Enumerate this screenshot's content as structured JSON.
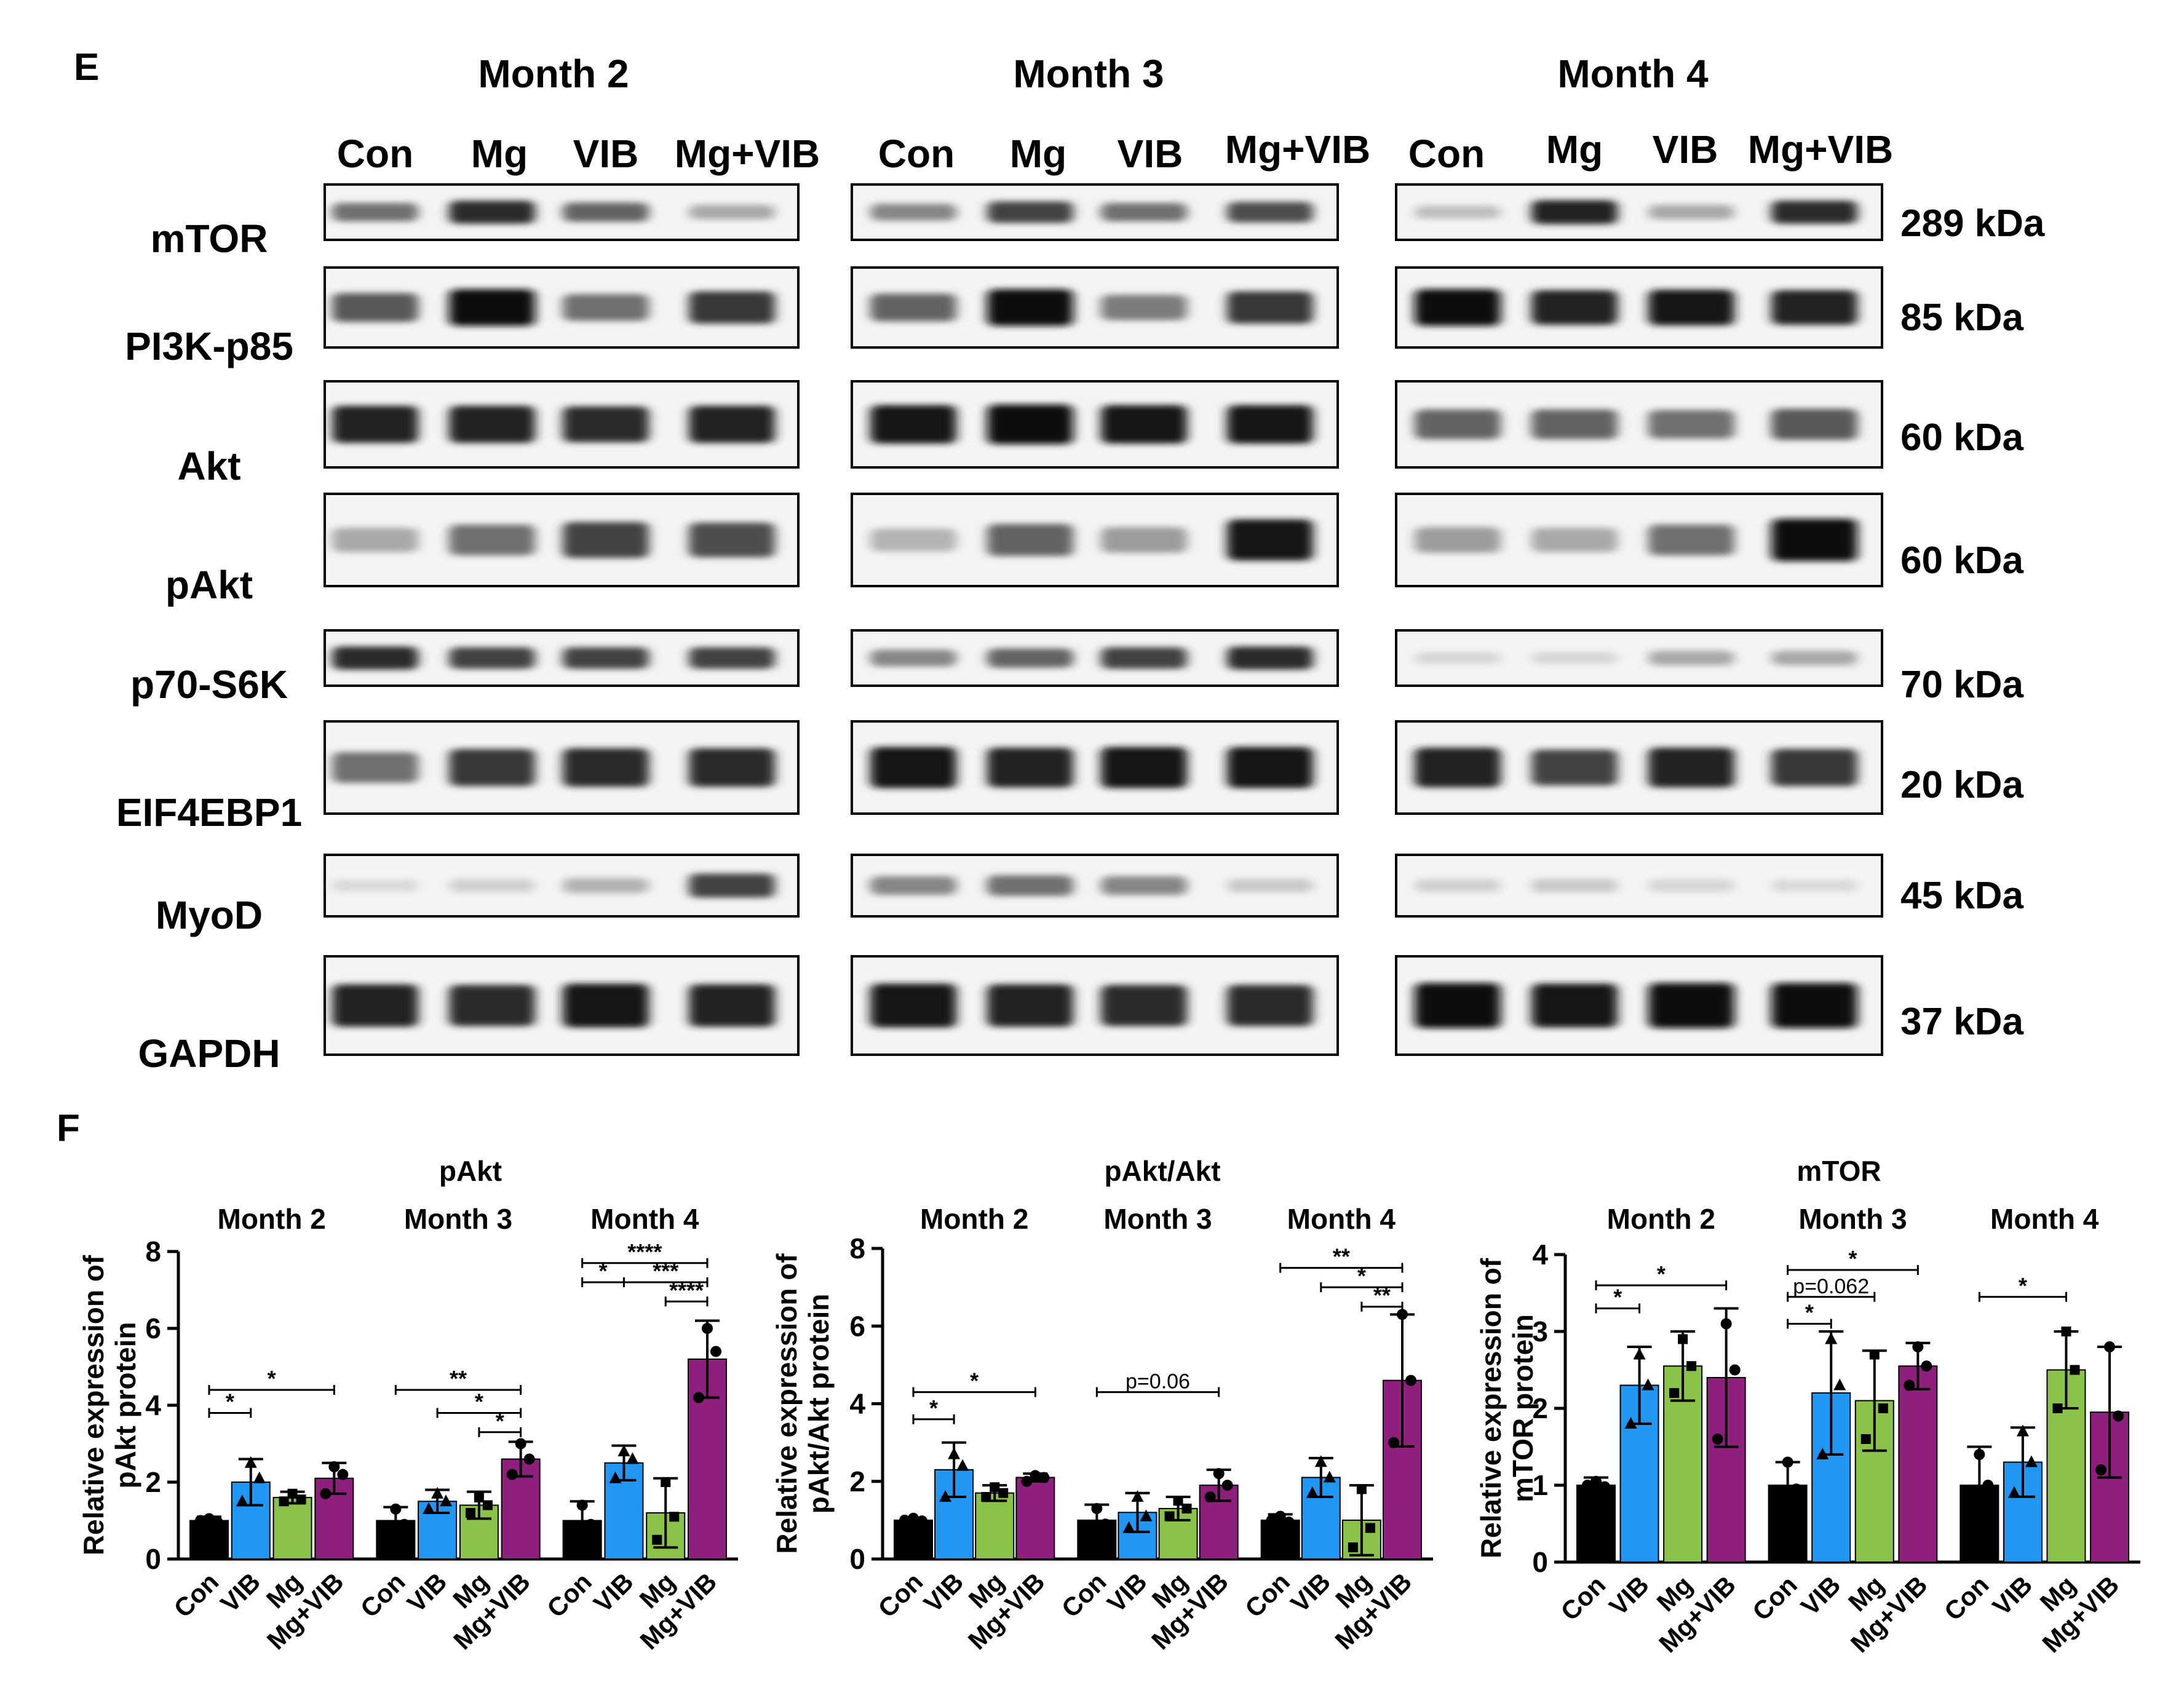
{
  "panel_e": {
    "letter": "E",
    "months": [
      "Month 2",
      "Month 3",
      "Month 4"
    ],
    "lanes": [
      "Con",
      "Mg",
      "VIB",
      "Mg+VIB"
    ],
    "rows": [
      {
        "protein": "mTOR",
        "size": "289 kDa",
        "intensities": [
          [
            0.55,
            0.85,
            0.6,
            0.3
          ],
          [
            0.45,
            0.75,
            0.55,
            0.7
          ],
          [
            0.2,
            0.9,
            0.3,
            0.85
          ]
        ]
      },
      {
        "protein": "PI3K-p85",
        "size": "85 kDa",
        "intensities": [
          [
            0.65,
            1.0,
            0.55,
            0.8
          ],
          [
            0.6,
            1.0,
            0.5,
            0.8
          ],
          [
            1.0,
            0.9,
            0.95,
            0.9
          ]
        ]
      },
      {
        "protein": "Akt",
        "size": "60 kDa",
        "intensities": [
          [
            0.9,
            0.9,
            0.85,
            0.9
          ],
          [
            0.95,
            1.0,
            0.95,
            0.95
          ],
          [
            0.6,
            0.6,
            0.55,
            0.65
          ]
        ]
      },
      {
        "protein": "pAkt",
        "size": "60 kDa",
        "intensities": [
          [
            0.3,
            0.55,
            0.75,
            0.7
          ],
          [
            0.25,
            0.6,
            0.35,
            0.95
          ],
          [
            0.35,
            0.3,
            0.55,
            1.0
          ]
        ]
      },
      {
        "protein": "p70-S6K",
        "size": "70 kDa",
        "intensities": [
          [
            0.85,
            0.75,
            0.75,
            0.75
          ],
          [
            0.45,
            0.6,
            0.75,
            0.85
          ],
          [
            0.1,
            0.1,
            0.3,
            0.3
          ]
        ]
      },
      {
        "protein": "EIF4EBP1",
        "size": "20 kDa",
        "intensities": [
          [
            0.55,
            0.8,
            0.85,
            0.85
          ],
          [
            0.95,
            0.9,
            0.95,
            0.95
          ],
          [
            0.9,
            0.75,
            0.9,
            0.8
          ]
        ]
      },
      {
        "protein": "MyoD",
        "size": "45 kDa",
        "intensities": [
          [
            0.08,
            0.12,
            0.25,
            0.75
          ],
          [
            0.45,
            0.55,
            0.45,
            0.15
          ],
          [
            0.12,
            0.15,
            0.1,
            0.08
          ]
        ]
      },
      {
        "protein": "GAPDH",
        "size": "37 kDa",
        "intensities": [
          [
            0.9,
            0.85,
            0.95,
            0.9
          ],
          [
            0.95,
            0.9,
            0.85,
            0.85
          ],
          [
            1.0,
            0.95,
            1.0,
            1.0
          ]
        ]
      }
    ]
  },
  "panel_f": {
    "letter": "F",
    "colors": {
      "Con": "#000000",
      "VIB": "#2196F3",
      "Mg": "#8BC34A",
      "Mg+VIB": "#8E1F7D"
    }
  },
  "chart_data": [
    {
      "type": "bar",
      "title": "pAkt",
      "ylabel": "Relative expression of pAkt protein",
      "ylim": [
        0,
        8
      ],
      "yticks": [
        0,
        2,
        4,
        6,
        8
      ],
      "groups": [
        "Month 2",
        "Month 3",
        "Month 4"
      ],
      "categories": [
        "Con",
        "VIB",
        "Mg",
        "Mg+VIB"
      ],
      "series": [
        {
          "group": "Month 2",
          "values": [
            1.0,
            2.0,
            1.6,
            2.1
          ],
          "errors": [
            0.1,
            0.6,
            0.15,
            0.4
          ],
          "points": [
            [
              1.0,
              1.05,
              0.95
            ],
            [
              1.5,
              2.5,
              2.1
            ],
            [
              1.5,
              1.7,
              1.55
            ],
            [
              1.7,
              2.4,
              2.2
            ]
          ]
        },
        {
          "group": "Month 3",
          "values": [
            1.0,
            1.5,
            1.4,
            2.6
          ],
          "errors": [
            0.35,
            0.3,
            0.35,
            0.45
          ],
          "points": [
            [
              0.8,
              1.3,
              0.9
            ],
            [
              1.3,
              1.7,
              1.5
            ],
            [
              1.2,
              1.6,
              1.4
            ],
            [
              2.2,
              3.0,
              2.6
            ]
          ]
        },
        {
          "group": "Month 4",
          "values": [
            1.0,
            2.5,
            1.2,
            5.2
          ],
          "errors": [
            0.5,
            0.45,
            0.9,
            1.0
          ],
          "points": [
            [
              0.7,
              1.4,
              0.9
            ],
            [
              2.1,
              2.8,
              2.6
            ],
            [
              0.5,
              2.0,
              1.1
            ],
            [
              4.2,
              6.0,
              5.4
            ]
          ]
        }
      ],
      "annotations": [
        {
          "group": "Month 2",
          "from": 0,
          "to": 1,
          "y": 3.8,
          "label": "*"
        },
        {
          "group": "Month 2",
          "from": 0,
          "to": 3,
          "y": 4.4,
          "label": "*"
        },
        {
          "group": "Month 3",
          "from": 0,
          "to": 3,
          "y": 4.4,
          "label": "**"
        },
        {
          "group": "Month 3",
          "from": 1,
          "to": 3,
          "y": 3.8,
          "label": "*"
        },
        {
          "group": "Month 3",
          "from": 2,
          "to": 3,
          "y": 3.3,
          "label": "*"
        },
        {
          "group": "Month 4",
          "from": 0,
          "to": 3,
          "y": 7.7,
          "label": "****"
        },
        {
          "group": "Month 4",
          "from": 0,
          "to": 1,
          "y": 7.2,
          "label": "*"
        },
        {
          "group": "Month 4",
          "from": 1,
          "to": 3,
          "y": 7.2,
          "label": "***"
        },
        {
          "group": "Month 4",
          "from": 2,
          "to": 3,
          "y": 6.7,
          "label": "****"
        }
      ]
    },
    {
      "type": "bar",
      "title": "pAkt/Akt",
      "ylabel": "Relative expression of pAkt/Akt protein",
      "ylim": [
        0,
        8
      ],
      "yticks": [
        0,
        2,
        4,
        6,
        8
      ],
      "groups": [
        "Month 2",
        "Month 3",
        "Month 4"
      ],
      "categories": [
        "Con",
        "VIB",
        "Mg",
        "Mg+VIB"
      ],
      "series": [
        {
          "group": "Month 2",
          "values": [
            1.0,
            2.3,
            1.7,
            2.1
          ],
          "errors": [
            0.05,
            0.7,
            0.2,
            0.1
          ],
          "points": [
            [
              1.0,
              1.05,
              0.98
            ],
            [
              1.6,
              2.7,
              2.4
            ],
            [
              1.6,
              1.85,
              1.7
            ],
            [
              2.0,
              2.15,
              2.1
            ]
          ]
        },
        {
          "group": "Month 3",
          "values": [
            1.0,
            1.2,
            1.3,
            1.9
          ],
          "errors": [
            0.4,
            0.5,
            0.3,
            0.4
          ],
          "points": [
            [
              0.7,
              1.3,
              0.9
            ],
            [
              0.8,
              1.6,
              1.1
            ],
            [
              1.1,
              1.5,
              1.3
            ],
            [
              1.6,
              2.2,
              1.9
            ]
          ]
        },
        {
          "group": "Month 4",
          "values": [
            1.0,
            2.1,
            1.0,
            4.6
          ],
          "errors": [
            0.15,
            0.5,
            0.9,
            1.7
          ],
          "points": [
            [
              1.0,
              1.1,
              0.95
            ],
            [
              1.7,
              2.5,
              2.1
            ],
            [
              0.3,
              1.8,
              0.8
            ],
            [
              3.0,
              6.3,
              4.6
            ]
          ]
        }
      ],
      "annotations": [
        {
          "group": "Month 2",
          "from": 0,
          "to": 1,
          "y": 3.6,
          "label": "*"
        },
        {
          "group": "Month 2",
          "from": 0,
          "to": 3,
          "y": 4.3,
          "label": "*"
        },
        {
          "group": "Month 3",
          "from": 0,
          "to": 3,
          "y": 4.3,
          "label": "p=0.06"
        },
        {
          "group": "Month 4",
          "from": 0,
          "to": 3,
          "y": 7.5,
          "label": "**"
        },
        {
          "group": "Month 4",
          "from": 1,
          "to": 3,
          "y": 7.0,
          "label": "*"
        },
        {
          "group": "Month 4",
          "from": 2,
          "to": 3,
          "y": 6.5,
          "label": "**"
        }
      ]
    },
    {
      "type": "bar",
      "title": "mTOR",
      "ylabel": "Relative expression of mTOR protein",
      "ylim": [
        0,
        4
      ],
      "yticks": [
        0,
        1,
        2,
        3,
        4
      ],
      "groups": [
        "Month 2",
        "Month 3",
        "Month 4"
      ],
      "categories": [
        "Con",
        "VIB",
        "Mg",
        "Mg+VIB"
      ],
      "series": [
        {
          "group": "Month 2",
          "values": [
            1.0,
            2.3,
            2.55,
            2.4
          ],
          "errors": [
            0.1,
            0.5,
            0.45,
            0.9
          ],
          "points": [
            [
              1.0,
              1.05,
              0.98
            ],
            [
              1.8,
              2.7,
              2.3
            ],
            [
              2.2,
              2.9,
              2.55
            ],
            [
              1.6,
              3.1,
              2.5
            ]
          ]
        },
        {
          "group": "Month 3",
          "values": [
            1.0,
            2.2,
            2.1,
            2.55
          ],
          "errors": [
            0.3,
            0.8,
            0.65,
            0.3
          ],
          "points": [
            [
              0.8,
              1.3,
              0.95
            ],
            [
              1.4,
              2.9,
              2.3
            ],
            [
              1.6,
              2.7,
              2.0
            ],
            [
              2.3,
              2.8,
              2.55
            ]
          ]
        },
        {
          "group": "Month 4",
          "values": [
            1.0,
            1.3,
            2.5,
            1.95
          ],
          "errors": [
            0.5,
            0.45,
            0.5,
            0.85
          ],
          "points": [
            [
              0.6,
              1.4,
              1.0
            ],
            [
              0.9,
              1.7,
              1.3
            ],
            [
              2.0,
              3.0,
              2.5
            ],
            [
              1.2,
              2.8,
              1.9
            ]
          ]
        }
      ],
      "annotations": [
        {
          "group": "Month 2",
          "from": 0,
          "to": 1,
          "y": 3.3,
          "label": "*"
        },
        {
          "group": "Month 2",
          "from": 0,
          "to": 3,
          "y": 3.6,
          "label": "*"
        },
        {
          "group": "Month 3",
          "from": 0,
          "to": 1,
          "y": 3.1,
          "label": "*"
        },
        {
          "group": "Month 3",
          "from": 0,
          "to": 2,
          "y": 3.45,
          "label": "p=0.062"
        },
        {
          "group": "Month 3",
          "from": 0,
          "to": 3,
          "y": 3.8,
          "label": "*"
        },
        {
          "group": "Month 4",
          "from": 0,
          "to": 2,
          "y": 3.45,
          "label": "*"
        }
      ]
    }
  ]
}
